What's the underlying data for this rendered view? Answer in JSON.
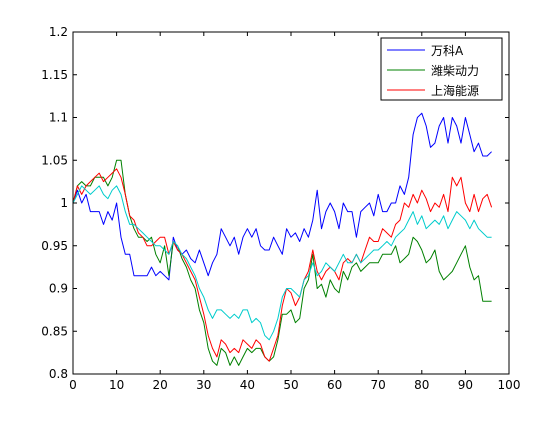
{
  "chart_data": {
    "type": "line",
    "title": "",
    "xlabel": "",
    "ylabel": "",
    "xlim": [
      0,
      100
    ],
    "ylim": [
      0.8,
      1.2
    ],
    "x_ticks": [
      0,
      10,
      20,
      30,
      40,
      50,
      60,
      70,
      80,
      90,
      100
    ],
    "y_ticks": [
      0.8,
      0.85,
      0.9,
      0.95,
      1,
      1.05,
      1.1,
      1.15,
      1.2
    ],
    "x_tick_labels": [
      "0",
      "10",
      "20",
      "30",
      "40",
      "50",
      "60",
      "70",
      "80",
      "90",
      "100"
    ],
    "y_tick_labels": [
      "0.8",
      "0.85",
      "0.9",
      "0.95",
      "1",
      "1.05",
      "1.1",
      "1.15",
      "1.2"
    ],
    "grid": false,
    "legend_position": "top-right",
    "series": [
      {
        "name": "万科A",
        "color": "#0000ff",
        "x": [
          0,
          1,
          2,
          3,
          4,
          5,
          6,
          7,
          8,
          9,
          10,
          11,
          12,
          13,
          14,
          15,
          16,
          17,
          18,
          19,
          20,
          21,
          22,
          23,
          24,
          25,
          26,
          27,
          28,
          29,
          30,
          31,
          32,
          33,
          34,
          35,
          36,
          37,
          38,
          39,
          40,
          41,
          42,
          43,
          44,
          45,
          46,
          47,
          48,
          49,
          50,
          51,
          52,
          53,
          54,
          55,
          56,
          57,
          58,
          59,
          60,
          61,
          62,
          63,
          64,
          65,
          66,
          67,
          68,
          69,
          70,
          71,
          72,
          73,
          74,
          75,
          76,
          77,
          78,
          79,
          80,
          81,
          82,
          83,
          84,
          85,
          86,
          87,
          88,
          89,
          90,
          91,
          92,
          93,
          94,
          95,
          96
        ],
        "y": [
          1.0,
          1.015,
          1.0,
          1.01,
          0.99,
          0.99,
          0.99,
          0.975,
          0.99,
          0.98,
          1.0,
          0.96,
          0.94,
          0.94,
          0.915,
          0.915,
          0.915,
          0.915,
          0.925,
          0.915,
          0.92,
          0.915,
          0.91,
          0.96,
          0.945,
          0.94,
          0.945,
          0.935,
          0.93,
          0.945,
          0.93,
          0.915,
          0.93,
          0.94,
          0.97,
          0.96,
          0.95,
          0.96,
          0.94,
          0.96,
          0.97,
          0.96,
          0.97,
          0.95,
          0.945,
          0.945,
          0.96,
          0.95,
          0.94,
          0.97,
          0.96,
          0.965,
          0.955,
          0.97,
          0.96,
          0.98,
          1.015,
          0.97,
          0.99,
          1.0,
          0.99,
          0.97,
          1.0,
          0.99,
          0.99,
          0.96,
          0.99,
          0.995,
          1.0,
          0.985,
          1.01,
          0.99,
          0.99,
          1.0,
          1.0,
          1.02,
          1.01,
          1.03,
          1.08,
          1.1,
          1.105,
          1.09,
          1.065,
          1.07,
          1.09,
          1.1,
          1.07,
          1.1,
          1.09,
          1.07,
          1.1,
          1.08,
          1.06,
          1.07,
          1.055,
          1.055,
          1.06
        ]
      },
      {
        "name": "潍柴动力",
        "color": "#008000",
        "x": [
          0,
          1,
          2,
          3,
          4,
          5,
          6,
          7,
          8,
          9,
          10,
          11,
          12,
          13,
          14,
          15,
          16,
          17,
          18,
          19,
          20,
          21,
          22,
          23,
          24,
          25,
          26,
          27,
          28,
          29,
          30,
          31,
          32,
          33,
          34,
          35,
          36,
          37,
          38,
          39,
          40,
          41,
          42,
          43,
          44,
          45,
          46,
          47,
          48,
          49,
          50,
          51,
          52,
          53,
          54,
          55,
          56,
          57,
          58,
          59,
          60,
          61,
          62,
          63,
          64,
          65,
          66,
          67,
          68,
          69,
          70,
          71,
          72,
          73,
          74,
          75,
          76,
          77,
          78,
          79,
          80,
          81,
          82,
          83,
          84,
          85,
          86,
          87,
          88,
          89,
          90,
          91,
          92,
          93,
          94,
          95,
          96
        ],
        "y": [
          1.0,
          1.02,
          1.025,
          1.02,
          1.02,
          1.03,
          1.03,
          1.03,
          1.02,
          1.03,
          1.05,
          1.05,
          1.01,
          0.985,
          0.97,
          0.96,
          0.96,
          0.955,
          0.96,
          0.94,
          0.93,
          0.95,
          0.915,
          0.955,
          0.95,
          0.935,
          0.925,
          0.91,
          0.9,
          0.875,
          0.86,
          0.83,
          0.815,
          0.81,
          0.83,
          0.825,
          0.81,
          0.82,
          0.81,
          0.82,
          0.83,
          0.825,
          0.83,
          0.83,
          0.82,
          0.815,
          0.82,
          0.84,
          0.87,
          0.87,
          0.875,
          0.86,
          0.865,
          0.9,
          0.91,
          0.94,
          0.9,
          0.905,
          0.89,
          0.91,
          0.9,
          0.895,
          0.92,
          0.91,
          0.925,
          0.93,
          0.92,
          0.925,
          0.93,
          0.93,
          0.93,
          0.94,
          0.94,
          0.94,
          0.95,
          0.93,
          0.935,
          0.94,
          0.96,
          0.955,
          0.945,
          0.93,
          0.935,
          0.945,
          0.92,
          0.91,
          0.915,
          0.92,
          0.93,
          0.94,
          0.95,
          0.925,
          0.91,
          0.915,
          0.885,
          0.885,
          0.885
        ]
      },
      {
        "name": "上海能源",
        "color": "#ff0000",
        "x": [
          0,
          1,
          2,
          3,
          4,
          5,
          6,
          7,
          8,
          9,
          10,
          11,
          12,
          13,
          14,
          15,
          16,
          17,
          18,
          19,
          20,
          21,
          22,
          23,
          24,
          25,
          26,
          27,
          28,
          29,
          30,
          31,
          32,
          33,
          34,
          35,
          36,
          37,
          38,
          39,
          40,
          41,
          42,
          43,
          44,
          45,
          46,
          47,
          48,
          49,
          50,
          51,
          52,
          53,
          54,
          55,
          56,
          57,
          58,
          59,
          60,
          61,
          62,
          63,
          64,
          65,
          66,
          67,
          68,
          69,
          70,
          71,
          72,
          73,
          74,
          75,
          76,
          77,
          78,
          79,
          80,
          81,
          82,
          83,
          84,
          85,
          86,
          87,
          88,
          89,
          90,
          91,
          92,
          93,
          94,
          95,
          96
        ],
        "y": [
          1.0,
          1.02,
          1.01,
          1.02,
          1.025,
          1.03,
          1.035,
          1.025,
          1.03,
          1.035,
          1.04,
          1.03,
          1.01,
          0.985,
          0.98,
          0.965,
          0.96,
          0.95,
          0.95,
          0.955,
          0.96,
          0.96,
          0.94,
          0.955,
          0.945,
          0.94,
          0.93,
          0.92,
          0.91,
          0.89,
          0.87,
          0.845,
          0.83,
          0.82,
          0.84,
          0.835,
          0.825,
          0.83,
          0.825,
          0.84,
          0.835,
          0.83,
          0.84,
          0.835,
          0.82,
          0.815,
          0.83,
          0.845,
          0.88,
          0.9,
          0.895,
          0.88,
          0.89,
          0.91,
          0.92,
          0.945,
          0.92,
          0.91,
          0.92,
          0.925,
          0.92,
          0.91,
          0.93,
          0.935,
          0.93,
          0.94,
          0.93,
          0.945,
          0.96,
          0.955,
          0.955,
          0.97,
          0.965,
          0.96,
          0.975,
          0.98,
          1.0,
          0.995,
          1.01,
          1.0,
          1.015,
          1.005,
          0.99,
          1.0,
          0.995,
          1.01,
          0.99,
          1.03,
          1.02,
          1.03,
          1.0,
          0.99,
          1.01,
          0.99,
          1.005,
          1.01,
          0.995
        ]
      },
      {
        "color": "#00cccc",
        "x": [
          0,
          1,
          2,
          3,
          4,
          5,
          6,
          7,
          8,
          9,
          10,
          11,
          12,
          13,
          14,
          15,
          16,
          17,
          18,
          19,
          20,
          21,
          22,
          23,
          24,
          25,
          26,
          27,
          28,
          29,
          30,
          31,
          32,
          33,
          34,
          35,
          36,
          37,
          38,
          39,
          40,
          41,
          42,
          43,
          44,
          45,
          46,
          47,
          48,
          49,
          50,
          51,
          52,
          53,
          54,
          55,
          56,
          57,
          58,
          59,
          60,
          61,
          62,
          63,
          64,
          65,
          66,
          67,
          68,
          69,
          70,
          71,
          72,
          73,
          74,
          75,
          76,
          77,
          78,
          79,
          80,
          81,
          82,
          83,
          84,
          85,
          86,
          87,
          88,
          89,
          90,
          91,
          92,
          93,
          94,
          95,
          96
        ],
        "y": [
          1.0,
          1.01,
          1.02,
          1.015,
          1.01,
          1.015,
          1.02,
          1.01,
          1.005,
          1.015,
          1.02,
          1.01,
          0.99,
          0.975,
          0.975,
          0.97,
          0.965,
          0.96,
          0.955,
          0.95,
          0.95,
          0.945,
          0.94,
          0.955,
          0.95,
          0.94,
          0.935,
          0.925,
          0.915,
          0.9,
          0.89,
          0.875,
          0.865,
          0.875,
          0.875,
          0.87,
          0.865,
          0.87,
          0.865,
          0.875,
          0.875,
          0.86,
          0.865,
          0.86,
          0.845,
          0.84,
          0.85,
          0.865,
          0.89,
          0.9,
          0.9,
          0.895,
          0.89,
          0.91,
          0.915,
          0.93,
          0.915,
          0.92,
          0.93,
          0.925,
          0.92,
          0.93,
          0.94,
          0.93,
          0.93,
          0.94,
          0.93,
          0.935,
          0.94,
          0.945,
          0.945,
          0.95,
          0.955,
          0.95,
          0.96,
          0.965,
          0.97,
          0.98,
          0.99,
          0.975,
          0.985,
          0.97,
          0.975,
          0.98,
          0.975,
          0.985,
          0.97,
          0.98,
          0.99,
          0.985,
          0.98,
          0.97,
          0.98,
          0.97,
          0.965,
          0.96,
          0.96
        ]
      }
    ]
  }
}
